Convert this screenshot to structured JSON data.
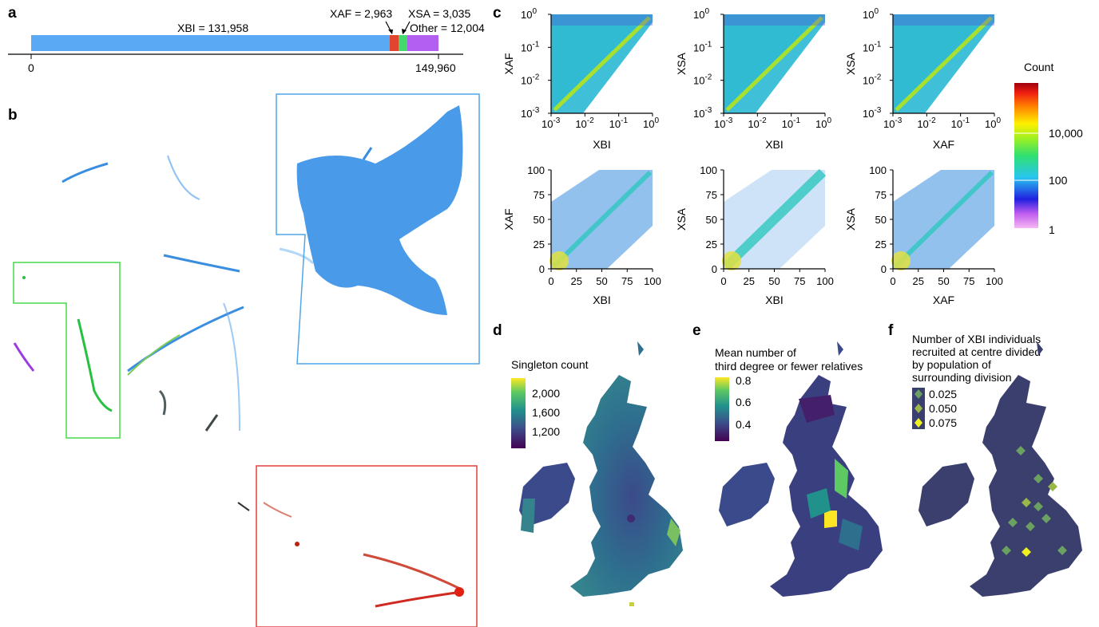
{
  "panel_labels": {
    "a": "a",
    "b": "b",
    "c": "c",
    "d": "d",
    "e": "e",
    "f": "f"
  },
  "colors": {
    "xbi": "#5aa9f5",
    "xaf": "#e1452f",
    "xsa": "#45d86c",
    "other": "#b35ff0"
  },
  "panel_a": {
    "total": 149960,
    "segments": [
      {
        "name": "XBI",
        "value": 131958,
        "label": "XBI = 131,958",
        "color": "#5aa9f5"
      },
      {
        "name": "XAF",
        "value": 2963,
        "label": "XAF = 2,963",
        "color": "#e1452f"
      },
      {
        "name": "XSA",
        "value": 3035,
        "label": "XSA = 3,035",
        "color": "#45d86c"
      },
      {
        "name": "Other",
        "value": 12004,
        "label": "Other = 12,004",
        "color": "#b35ff0"
      }
    ],
    "axis_ticks": [
      "0",
      "149,960"
    ]
  },
  "panel_c": {
    "log_ticks": {
      "x": [
        "10",
        "10",
        "10",
        "10"
      ],
      "exps": [
        "-3",
        "-2",
        "-1",
        "0"
      ]
    },
    "lin_ticks": [
      "0",
      "25",
      "50",
      "75",
      "100"
    ],
    "plots": [
      {
        "xlabel": "XBI",
        "ylabel": "XAF"
      },
      {
        "xlabel": "XBI",
        "ylabel": "XSA"
      },
      {
        "xlabel": "XAF",
        "ylabel": "XSA"
      },
      {
        "xlabel": "XBI",
        "ylabel": "XAF"
      },
      {
        "xlabel": "XBI",
        "ylabel": "XSA"
      },
      {
        "xlabel": "XAF",
        "ylabel": "XSA"
      }
    ],
    "colorbar": {
      "title": "Count",
      "ticks": [
        "10,000",
        "100",
        "1"
      ]
    }
  },
  "panel_d": {
    "title": "Singleton count",
    "ticks": [
      "2,000",
      "1,600",
      "1,200"
    ]
  },
  "panel_e": {
    "title_line1": "Mean number of",
    "title_line2": "third degree or fewer relatives",
    "ticks": [
      "0.8",
      "0.6",
      "0.4"
    ]
  },
  "panel_f": {
    "title_lines": [
      "Number of XBI individuals",
      "recruited at centre divided",
      "by population of",
      "surrounding division"
    ],
    "legend": [
      "0.025",
      "0.050",
      "0.075"
    ]
  }
}
